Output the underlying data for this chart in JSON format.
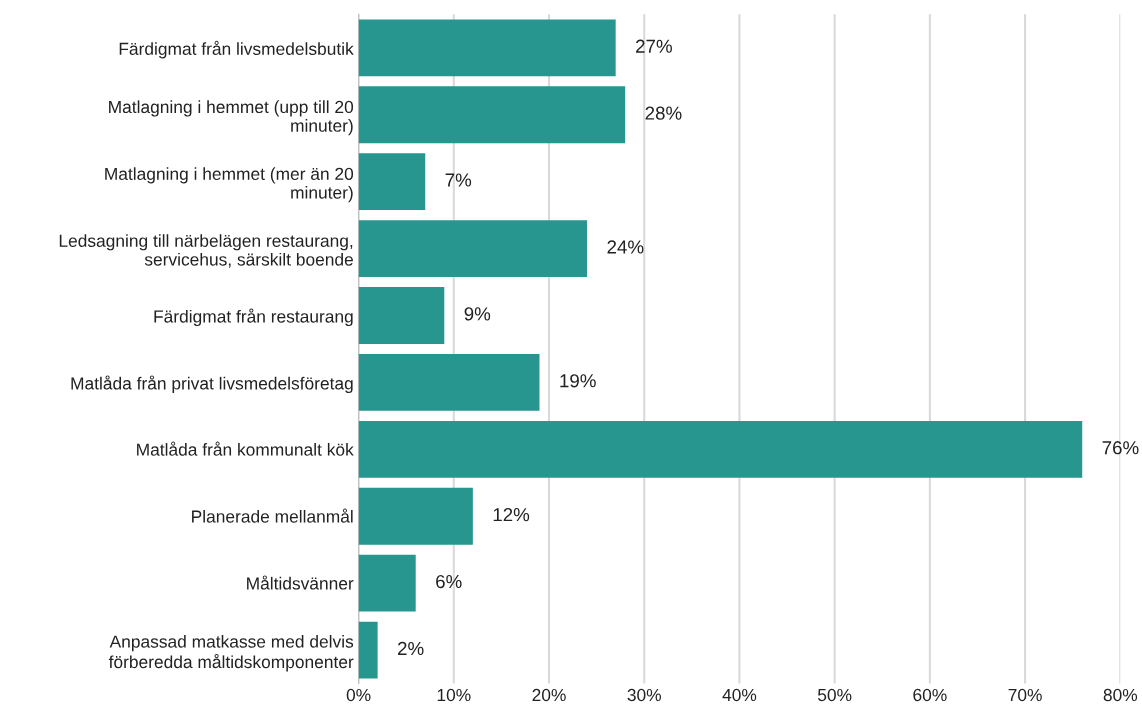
{
  "chart_data": {
    "type": "bar",
    "orientation": "horizontal",
    "categories": [
      "Färdigmat från livsmedelsbutik",
      "Matlagning i hemmet (upp till 20\nminuter)",
      "Matlagning i hemmet (mer än 20\nminuter)",
      "Ledsagning till närbelägen restaurang,\nservicehus, särskilt boende",
      "Färdigmat från restaurang",
      "Matlåda från privat livsmedelsföretag",
      "Matlåda från kommunalt kök",
      "Planerade mellanmål",
      "Måltidsvänner",
      "Anpassad matkasse med delvis\nförberedda måltidskomponenter"
    ],
    "values": [
      27,
      28,
      7,
      24,
      9,
      19,
      76,
      12,
      6,
      2
    ],
    "value_labels": [
      "27%",
      "28%",
      "7%",
      "24%",
      "9%",
      "19%",
      "76%",
      "12%",
      "6%",
      "2%"
    ],
    "color": "#26968f",
    "xlim": [
      0,
      80
    ],
    "xticks": [
      {
        "value": 0,
        "label": "0%"
      },
      {
        "value": 10,
        "label": "10%"
      },
      {
        "value": 20,
        "label": "20%"
      },
      {
        "value": 30,
        "label": "30%"
      },
      {
        "value": 40,
        "label": "40%"
      },
      {
        "value": 50,
        "label": "50%"
      },
      {
        "value": 60,
        "label": "60%"
      },
      {
        "value": 70,
        "label": "70%"
      },
      {
        "value": 80,
        "label": "80%"
      }
    ],
    "grid": "x",
    "legend": false
  }
}
